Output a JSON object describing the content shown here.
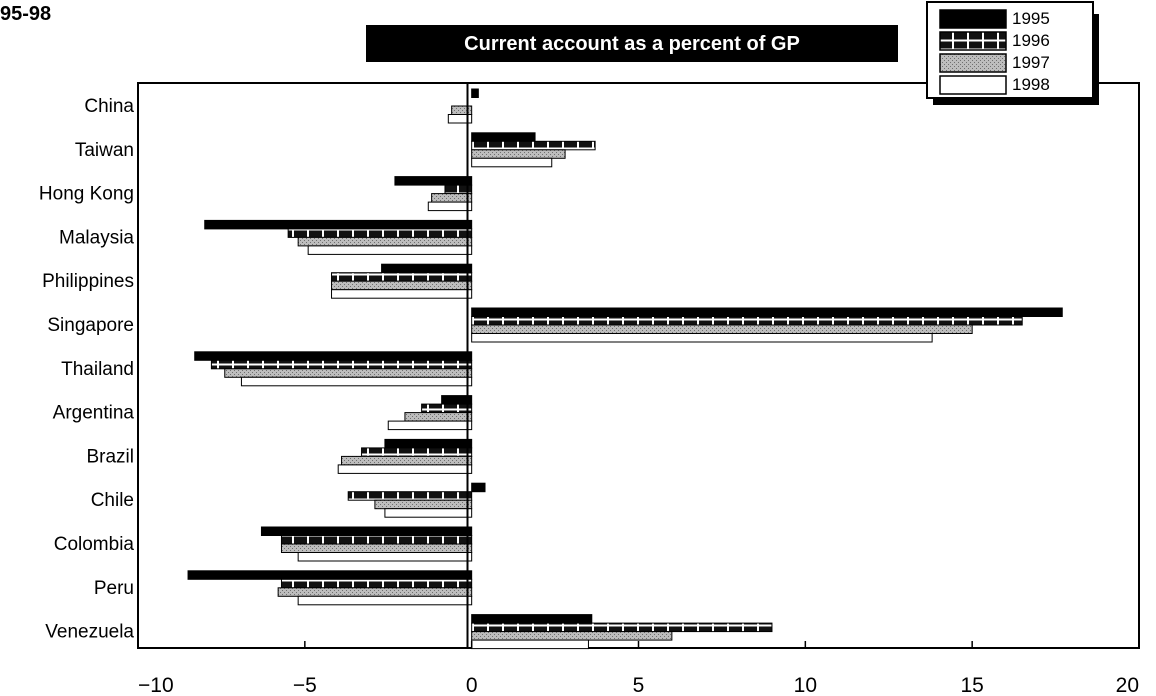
{
  "corner_label": "95-98",
  "chart_data": {
    "type": "bar",
    "orientation": "horizontal",
    "title": "Current account as a percent of GP",
    "xlabel": "",
    "ylabel": "",
    "xlim": [
      -10,
      20
    ],
    "xticks": [
      -10,
      -5,
      0,
      5,
      10,
      15,
      20
    ],
    "xtick_labels": [
      "−10",
      "−5",
      "0",
      "5",
      "10",
      "15",
      "20"
    ],
    "grid": false,
    "legend_position": "top-right",
    "categories": [
      "China",
      "Taiwan",
      "Hong Kong",
      "Malaysia",
      "Philippines",
      "Singapore",
      "Thailand",
      "Argentina",
      "Brazil",
      "Chile",
      "Colombia",
      "Peru",
      "Venezuela"
    ],
    "series": [
      {
        "name": "1995",
        "pattern": "solid-black",
        "values": [
          0.2,
          1.9,
          -2.3,
          -8.0,
          -2.7,
          17.7,
          -8.3,
          -0.9,
          -2.6,
          0.4,
          -6.3,
          -8.5,
          3.6
        ]
      },
      {
        "name": "1996",
        "pattern": "hatched",
        "values": [
          0.0,
          3.7,
          -0.8,
          -5.5,
          -4.2,
          16.5,
          -7.8,
          -1.5,
          -3.3,
          -3.7,
          -5.7,
          -5.7,
          9.0
        ]
      },
      {
        "name": "1997",
        "pattern": "stippled-gray",
        "values": [
          -0.6,
          2.8,
          -1.2,
          -5.2,
          -4.2,
          15.0,
          -7.4,
          -2.0,
          -3.9,
          -2.9,
          -5.7,
          -5.8,
          6.0
        ]
      },
      {
        "name": "1998",
        "pattern": "white",
        "values": [
          -0.7,
          2.4,
          -1.3,
          -4.9,
          -4.2,
          13.8,
          -6.9,
          -2.5,
          -4.0,
          -2.6,
          -5.2,
          -5.2,
          3.5
        ]
      }
    ]
  }
}
